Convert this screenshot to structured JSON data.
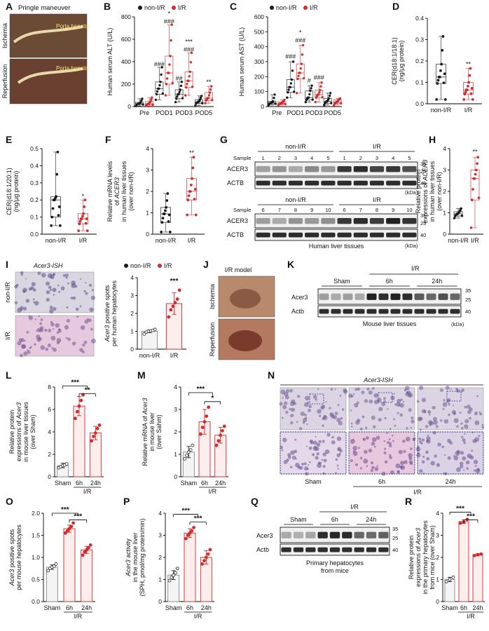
{
  "colors": {
    "control": "#1a1a1a",
    "ir": "#d42a2a",
    "ir_box": "#d96060",
    "ctrl_box": "#555555"
  },
  "legend": {
    "non_ir": "non-I/R",
    "ir": "I/R"
  },
  "panels": {
    "A": {
      "letter": "A",
      "title": "Pringle maneuver",
      "ischemia": "Ischemia",
      "reperfusion": "Reperfusion",
      "porta": "Porta hepatis",
      "porta2": "Porta hepatis"
    },
    "G": {
      "letter": "G",
      "sample": "Sample",
      "non_ir": "non-I/R",
      "ir": "I/R",
      "row1": "ACER3",
      "row2": "ACTB",
      "lanes_top": [
        "1",
        "2",
        "3",
        "4",
        "5",
        "1",
        "2",
        "3",
        "4",
        "5"
      ],
      "lanes_bottom": [
        "6",
        "7",
        "8",
        "9",
        "10",
        "6",
        "7",
        "8",
        "9",
        "10"
      ],
      "mw_top": [
        "35",
        "25",
        "40"
      ],
      "mw_bottom": [
        "35",
        "25",
        "40"
      ],
      "kda": "(kDa)",
      "kda2": "(kDa)",
      "caption": "Human liver tissues"
    },
    "I": {
      "letter": "I",
      "title": "Acer3-ISH",
      "non_ir": "non-I/R",
      "ir": "I/R"
    },
    "J": {
      "letter": "J",
      "title": "I/R model",
      "ischemia": "Ischemia",
      "reperfusion": "Reperfusion"
    },
    "K": {
      "letter": "K",
      "ir": "I/R",
      "groups": [
        "Sham",
        "6h",
        "24h"
      ],
      "row1": "Acer3",
      "row2": "Actb",
      "mw": [
        "35",
        "25",
        "40"
      ],
      "kda": "(kDa)",
      "caption": "Mouse liver tissues"
    },
    "N": {
      "letter": "N",
      "title": "Acer3-ISH",
      "groups": [
        "Sham",
        "6h",
        "24h"
      ],
      "ir": "I/R"
    },
    "Q": {
      "letter": "Q",
      "ir": "I/R",
      "groups": [
        "Sham",
        "6h",
        "24h"
      ],
      "row1": "Acer3",
      "row2": "Actb",
      "mw": [
        "35",
        "25",
        "40"
      ],
      "caption1": "Primary hepatocytes",
      "caption2": "from mice"
    }
  },
  "chart_data": [
    {
      "panel": "B",
      "type": "box",
      "ylabel": "Human serum ALT (U/L)",
      "ylim": [
        0,
        800
      ],
      "yticks": [
        0,
        200,
        400,
        600,
        800
      ],
      "categories": [
        "Pre",
        "POD1",
        "POD3",
        "POD5"
      ],
      "legend": [
        "non-I/R",
        "I/R"
      ],
      "series": [
        {
          "name": "non-I/R",
          "box": [
            [
              5,
              18,
              25,
              38,
              70
            ],
            [
              60,
              110,
              160,
              220,
              350
            ],
            [
              40,
              70,
              110,
              150,
              220
            ],
            [
              10,
              28,
              42,
              62,
              95
            ]
          ]
        },
        {
          "name": "I/R",
          "box": [
            [
              5,
              15,
              25,
              45,
              80
            ],
            [
              100,
              200,
              300,
              450,
              730
            ],
            [
              100,
              170,
              230,
              310,
              480
            ],
            [
              30,
              55,
              75,
              125,
              180
            ]
          ]
        }
      ],
      "annotations": [
        {
          "text": "###",
          "cat": 1,
          "s": 0,
          "y": 360
        },
        {
          "text": "###",
          "cat": 1,
          "s": 1,
          "y": 740
        },
        {
          "text": "*",
          "cat": 1,
          "s": 1,
          "y": 810
        },
        {
          "text": "##",
          "cat": 2,
          "s": 0,
          "y": 230
        },
        {
          "text": "###",
          "cat": 2,
          "s": 1,
          "y": 490
        },
        {
          "text": "***",
          "cat": 2,
          "s": 1,
          "y": 560
        },
        {
          "text": "**",
          "cat": 3,
          "s": 1,
          "y": 200
        }
      ]
    },
    {
      "panel": "C",
      "type": "box",
      "ylabel": "Human serum AST (U/L)",
      "ylim": [
        0,
        600
      ],
      "yticks": [
        0,
        100,
        200,
        300,
        400,
        500,
        600
      ],
      "categories": [
        "Pre",
        "POD1",
        "POD3",
        "POD5"
      ],
      "legend": [
        "non-I/R",
        "I/R"
      ],
      "series": [
        {
          "name": "non-I/R",
          "box": [
            [
              10,
              18,
              25,
              35,
              80
            ],
            [
              60,
              95,
              130,
              180,
              300
            ],
            [
              30,
              45,
              60,
              105,
              140
            ],
            [
              10,
              22,
              35,
              55,
              90
            ]
          ]
        },
        {
          "name": "I/R",
          "box": [
            [
              10,
              15,
              22,
              30,
              45
            ],
            [
              90,
              185,
              225,
              285,
              410
            ],
            [
              30,
              60,
              80,
              110,
              160
            ],
            [
              10,
              20,
              30,
              45,
              55
            ]
          ]
        }
      ],
      "annotations": [
        {
          "text": "###",
          "cat": 1,
          "s": 0,
          "y": 320
        },
        {
          "text": "###",
          "cat": 1,
          "s": 1,
          "y": 430
        },
        {
          "text": "*",
          "cat": 1,
          "s": 1,
          "y": 480
        },
        {
          "text": "#",
          "cat": 2,
          "s": 0,
          "y": 160
        },
        {
          "text": "###",
          "cat": 2,
          "s": 1,
          "y": 180
        }
      ]
    },
    {
      "panel": "D",
      "type": "box",
      "ylabel": "CER(d18:1/18:1)",
      "ylabel2": "(ng/μg protein)",
      "ylim": [
        0,
        0.4
      ],
      "yticks": [
        "0.0",
        "0.1",
        "0.2",
        "0.3",
        "0.4"
      ],
      "categories": [
        "non-I/R",
        "I/R"
      ],
      "series": [
        {
          "name": "non-I/R",
          "box": [
            [
              0.02,
              0.095,
              0.125,
              0.185,
              0.315
            ]
          ]
        },
        {
          "name": "I/R",
          "box": [
            [
              0.02,
              0.045,
              0.065,
              0.1,
              0.165
            ]
          ]
        }
      ],
      "annotations": [
        {
          "text": "**",
          "cat": 1,
          "s": 0,
          "y": 0.175
        }
      ]
    },
    {
      "panel": "E",
      "type": "box",
      "ylabel": "CER(d18:1/20:1)",
      "ylabel2": "(ng/μg protein)",
      "ylim": [
        0,
        0.5
      ],
      "yticks": [
        "0.0",
        "0.1",
        "0.2",
        "0.3",
        "0.4",
        "0.5"
      ],
      "categories": [
        "non-I/R",
        "I/R"
      ],
      "series": [
        {
          "name": "non-I/R",
          "box": [
            [
              0.05,
              0.1,
              0.2,
              0.22,
              0.48
            ]
          ]
        },
        {
          "name": "I/R",
          "box": [
            [
              0.02,
              0.06,
              0.09,
              0.12,
              0.2
            ]
          ]
        }
      ],
      "annotations": [
        {
          "text": "*",
          "cat": 1,
          "s": 0,
          "y": 0.21
        }
      ]
    },
    {
      "panel": "F",
      "type": "box",
      "ylabel": "Relative mRNA levels",
      "ylabel2": "of ACER3",
      "ylabel3": "in human liver tissues",
      "ylabel4": "(over non-I/R)",
      "ylim": [
        0,
        4
      ],
      "yticks": [
        0,
        1,
        2,
        3,
        4
      ],
      "categories": [
        "non-I/R",
        "I/R"
      ],
      "series": [
        {
          "name": "non-I/R",
          "box": [
            [
              0.1,
              0.55,
              0.95,
              1.25,
              1.9
            ]
          ]
        },
        {
          "name": "I/R",
          "box": [
            [
              0.9,
              1.6,
              2.0,
              2.6,
              3.6
            ]
          ]
        }
      ],
      "annotations": [
        {
          "text": "**",
          "cat": 1,
          "s": 0,
          "y": 3.7
        }
      ]
    },
    {
      "panel": "H",
      "type": "box",
      "ylabel": "Relative protein",
      "ylabel2": "expressions of ACER3",
      "ylabel3": "in human liver tissues",
      "ylabel4": "(over non-I/R)",
      "ylim": [
        0,
        4
      ],
      "yticks": [
        0,
        1,
        2,
        3,
        4
      ],
      "categories": [
        "non-I/R",
        "I/R"
      ],
      "series": [
        {
          "name": "non-I/R",
          "box": [
            [
              0.75,
              0.85,
              0.95,
              1.05,
              1.2
            ]
          ]
        },
        {
          "name": "I/R",
          "box": [
            [
              0.3,
              1.6,
              2.6,
              3.0,
              3.6
            ]
          ]
        }
      ],
      "annotations": [
        {
          "text": "**",
          "cat": 1,
          "s": 0,
          "y": 3.75
        }
      ]
    },
    {
      "panel": "I2",
      "type": "bar",
      "ylabel": "Acer3 positive spots",
      "ylabel2": "per human hepatocytes",
      "ylim": [
        0,
        4
      ],
      "yticks": [
        0,
        1,
        2,
        3,
        4
      ],
      "categories": [
        "non-I/R",
        "I/R"
      ],
      "legend": [
        "non-I/R",
        "I/R"
      ],
      "values": [
        1.0,
        2.55
      ],
      "errors": [
        0.08,
        0.6
      ],
      "points": [
        [
          0.85,
          0.95,
          1.0,
          1.02,
          1.05,
          1.1
        ],
        [
          1.8,
          2.2,
          2.4,
          2.6,
          2.8,
          3.3
        ]
      ],
      "sig": [
        {
          "text": "***",
          "from": 1,
          "to": 1,
          "y": 3.6
        }
      ]
    },
    {
      "panel": "L",
      "type": "bar",
      "ylabel": "Relative protein",
      "ylabel2": "expressions of Acer3",
      "ylabel3": "in mouse liver tissues",
      "ylabel4": "(over Sham)",
      "ylim": [
        0,
        8
      ],
      "yticks": [
        0,
        2,
        4,
        6,
        8
      ],
      "categories": [
        "Sham",
        "6h",
        "24h"
      ],
      "group_label": "I/R",
      "values": [
        1.0,
        6.3,
        3.9
      ],
      "errors": [
        0.2,
        0.85,
        0.6
      ],
      "points": [
        [
          0.8,
          0.9,
          1.0,
          1.05,
          1.15
        ],
        [
          5.2,
          5.8,
          6.3,
          6.8,
          7.3
        ],
        [
          3.2,
          3.6,
          3.9,
          4.3,
          4.6
        ]
      ],
      "sig": [
        {
          "text": "***",
          "from": 0,
          "to": 1.5,
          "y": 8.1
        },
        {
          "text": "**",
          "from": 1,
          "to": 2,
          "y": 7.4
        }
      ]
    },
    {
      "panel": "M",
      "type": "bar",
      "ylabel": "Relative mRNA of Acer3",
      "ylabel2": "in mouse liver",
      "ylabel3": "(over Sahm)",
      "ylim": [
        0,
        4
      ],
      "yticks": [
        0,
        1,
        2,
        3,
        4
      ],
      "categories": [
        "Sham",
        "6h",
        "24h"
      ],
      "group_label": "I/R",
      "values": [
        1.1,
        2.45,
        1.85
      ],
      "errors": [
        0.25,
        0.55,
        0.35
      ],
      "points": [
        [
          0.8,
          0.95,
          1.1,
          1.2,
          1.4
        ],
        [
          1.9,
          2.2,
          2.45,
          2.7,
          3.1
        ],
        [
          1.4,
          1.6,
          1.85,
          2.05,
          2.25
        ]
      ],
      "sig": [
        {
          "text": "***",
          "from": 0,
          "to": 1.5,
          "y": 3.75
        },
        {
          "text": "*",
          "from": 1,
          "to": 2,
          "y": 3.35
        }
      ]
    },
    {
      "panel": "O",
      "type": "bar",
      "ylabel": "Acer3 positive spots",
      "ylabel2": "per mouse hepatocytes",
      "ylim": [
        0,
        2.0
      ],
      "yticks": [
        "0.0",
        "0.5",
        "1.0",
        "1.5",
        "2.0"
      ],
      "categories": [
        "Sham",
        "6h",
        "24h"
      ],
      "group_label": "I/R",
      "values": [
        0.78,
        1.65,
        1.17
      ],
      "errors": [
        0.05,
        0.08,
        0.08
      ],
      "points": [
        [
          0.7,
          0.75,
          0.78,
          0.8,
          0.85
        ],
        [
          1.55,
          1.6,
          1.65,
          1.7,
          1.78
        ],
        [
          1.05,
          1.12,
          1.17,
          1.22,
          1.28
        ]
      ],
      "sig": [
        {
          "text": "***",
          "from": 0,
          "to": 1.5,
          "y": 2.0
        },
        {
          "text": "***",
          "from": 1,
          "to": 2,
          "y": 1.85
        }
      ]
    },
    {
      "panel": "P",
      "type": "bar",
      "ylabel": "Acer3 activity",
      "ylabel2": "in the mouse liver",
      "ylabel3": "(SPH, pmol/mg protein/min)",
      "ylim": [
        0,
        4
      ],
      "yticks": [
        0,
        1,
        2,
        3,
        4
      ],
      "categories": [
        "Sham",
        "6h",
        "24h"
      ],
      "group_label": "I/R",
      "values": [
        1.2,
        3.1,
        2.0
      ],
      "errors": [
        0.2,
        0.2,
        0.3
      ],
      "points": [
        [
          0.95,
          1.1,
          1.2,
          1.3,
          1.5
        ],
        [
          2.85,
          3.0,
          3.1,
          3.2,
          3.35
        ],
        [
          1.7,
          1.85,
          2.0,
          2.15,
          2.35
        ]
      ],
      "sig": [
        {
          "text": "***",
          "from": 0,
          "to": 1.5,
          "y": 3.95
        },
        {
          "text": "***",
          "from": 1,
          "to": 2,
          "y": 3.6
        }
      ]
    },
    {
      "panel": "R",
      "type": "bar",
      "ylabel": "Relative protein",
      "ylabel2": "expressions of Acer3",
      "ylabel3": "in the primary hepatocytes",
      "ylabel4": "from mice (over Sham)",
      "ylim": [
        0,
        4
      ],
      "yticks": [
        0,
        1,
        2,
        3,
        4
      ],
      "categories": [
        "Sham",
        "6h",
        "24h"
      ],
      "group_label": "I/R",
      "values": [
        1.0,
        3.62,
        2.12
      ],
      "errors": [
        0.1,
        0.08,
        0.05
      ],
      "points": [
        [
          0.9,
          1.0,
          1.1
        ],
        [
          3.55,
          3.6,
          3.72
        ],
        [
          2.08,
          2.12,
          2.15
        ]
      ],
      "sig": [
        {
          "text": "***",
          "from": 0,
          "to": 1.5,
          "y": 4.05
        },
        {
          "text": "***",
          "from": 1,
          "to": 2,
          "y": 3.7
        }
      ]
    }
  ]
}
